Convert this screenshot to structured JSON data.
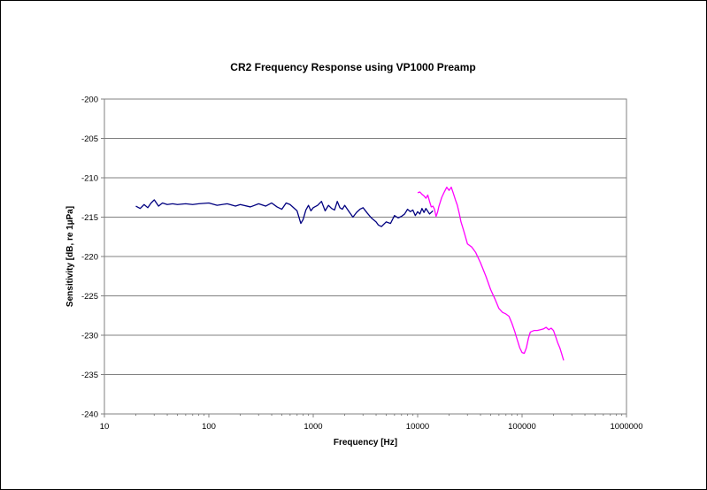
{
  "chart_data": {
    "type": "line",
    "title": "CR2 Frequency Response using VP1000 Preamp",
    "xlabel": "Frequency [Hz]",
    "ylabel": "Sensitivity [dB, re 1µPa]",
    "x_scale": "log",
    "xlim": [
      10,
      1000000
    ],
    "ylim": [
      -240,
      -200
    ],
    "x_ticks": [
      "10",
      "100",
      "1000",
      "10000",
      "100000",
      "1000000"
    ],
    "y_ticks": [
      "-200",
      "-205",
      "-210",
      "-215",
      "-220",
      "-225",
      "-230",
      "-235",
      "-240"
    ],
    "grid": "horizontal",
    "legend": "none",
    "series": [
      {
        "color": "#000080",
        "points": [
          [
            20,
            -213.6
          ],
          [
            22,
            -213.9
          ],
          [
            24,
            -213.4
          ],
          [
            26,
            -213.8
          ],
          [
            28,
            -213.2
          ],
          [
            30,
            -212.8
          ],
          [
            33,
            -213.6
          ],
          [
            36,
            -213.2
          ],
          [
            40,
            -213.4
          ],
          [
            45,
            -213.3
          ],
          [
            50,
            -213.4
          ],
          [
            60,
            -213.3
          ],
          [
            70,
            -213.4
          ],
          [
            80,
            -213.3
          ],
          [
            100,
            -213.2
          ],
          [
            120,
            -213.5
          ],
          [
            150,
            -213.3
          ],
          [
            180,
            -213.6
          ],
          [
            200,
            -213.4
          ],
          [
            250,
            -213.7
          ],
          [
            300,
            -213.3
          ],
          [
            350,
            -213.6
          ],
          [
            400,
            -213.2
          ],
          [
            450,
            -213.7
          ],
          [
            500,
            -214.0
          ],
          [
            550,
            -213.2
          ],
          [
            600,
            -213.4
          ],
          [
            700,
            -214.2
          ],
          [
            760,
            -215.8
          ],
          [
            800,
            -215.3
          ],
          [
            850,
            -214.1
          ],
          [
            900,
            -213.5
          ],
          [
            950,
            -214.2
          ],
          [
            1000,
            -213.8
          ],
          [
            1100,
            -213.5
          ],
          [
            1200,
            -213.0
          ],
          [
            1300,
            -214.2
          ],
          [
            1400,
            -213.5
          ],
          [
            1500,
            -213.9
          ],
          [
            1600,
            -214.1
          ],
          [
            1700,
            -213.0
          ],
          [
            1800,
            -213.8
          ],
          [
            1900,
            -214.0
          ],
          [
            2000,
            -213.5
          ],
          [
            2200,
            -214.3
          ],
          [
            2400,
            -215.0
          ],
          [
            2600,
            -214.4
          ],
          [
            2800,
            -214.0
          ],
          [
            3000,
            -213.8
          ],
          [
            3300,
            -214.5
          ],
          [
            3600,
            -215.1
          ],
          [
            4000,
            -215.6
          ],
          [
            4200,
            -216.0
          ],
          [
            4500,
            -216.2
          ],
          [
            5000,
            -215.6
          ],
          [
            5500,
            -215.8
          ],
          [
            6000,
            -214.8
          ],
          [
            6500,
            -215.1
          ],
          [
            7000,
            -214.9
          ],
          [
            7500,
            -214.6
          ],
          [
            8000,
            -214.0
          ],
          [
            8500,
            -214.3
          ],
          [
            9000,
            -214.1
          ],
          [
            9500,
            -214.8
          ],
          [
            10000,
            -214.3
          ],
          [
            10500,
            -214.6
          ],
          [
            11000,
            -213.9
          ],
          [
            11500,
            -214.4
          ],
          [
            12000,
            -213.9
          ],
          [
            13000,
            -214.6
          ],
          [
            14000,
            -214.2
          ]
        ]
      },
      {
        "color": "#FF00FF",
        "points": [
          [
            10000,
            -211.9
          ],
          [
            10500,
            -211.8
          ],
          [
            11000,
            -212.1
          ],
          [
            11500,
            -212.3
          ],
          [
            12000,
            -212.6
          ],
          [
            12500,
            -212.2
          ],
          [
            13000,
            -213.0
          ],
          [
            13500,
            -213.7
          ],
          [
            14000,
            -213.6
          ],
          [
            14500,
            -214.0
          ],
          [
            15000,
            -214.9
          ],
          [
            15500,
            -214.4
          ],
          [
            16000,
            -213.6
          ],
          [
            17000,
            -212.5
          ],
          [
            18000,
            -211.8
          ],
          [
            19000,
            -211.2
          ],
          [
            20000,
            -211.6
          ],
          [
            21000,
            -211.2
          ],
          [
            22000,
            -212.0
          ],
          [
            23000,
            -212.8
          ],
          [
            24000,
            -213.5
          ],
          [
            25000,
            -214.5
          ],
          [
            26000,
            -215.6
          ],
          [
            27000,
            -216.3
          ],
          [
            28000,
            -217.0
          ],
          [
            30000,
            -218.4
          ],
          [
            33000,
            -218.8
          ],
          [
            36000,
            -219.5
          ],
          [
            40000,
            -220.8
          ],
          [
            45000,
            -222.5
          ],
          [
            50000,
            -224.2
          ],
          [
            55000,
            -225.4
          ],
          [
            60000,
            -226.6
          ],
          [
            65000,
            -227.1
          ],
          [
            70000,
            -227.3
          ],
          [
            75000,
            -227.6
          ],
          [
            80000,
            -228.5
          ],
          [
            85000,
            -229.5
          ],
          [
            90000,
            -230.6
          ],
          [
            95000,
            -231.6
          ],
          [
            100000,
            -232.2
          ],
          [
            105000,
            -232.3
          ],
          [
            110000,
            -231.6
          ],
          [
            115000,
            -230.4
          ],
          [
            120000,
            -229.6
          ],
          [
            130000,
            -229.4
          ],
          [
            140000,
            -229.4
          ],
          [
            150000,
            -229.3
          ],
          [
            160000,
            -229.2
          ],
          [
            170000,
            -229.0
          ],
          [
            180000,
            -229.3
          ],
          [
            190000,
            -229.1
          ],
          [
            200000,
            -229.4
          ],
          [
            210000,
            -230.2
          ],
          [
            220000,
            -231.0
          ],
          [
            230000,
            -231.6
          ],
          [
            240000,
            -232.4
          ],
          [
            250000,
            -233.2
          ]
        ]
      }
    ]
  }
}
